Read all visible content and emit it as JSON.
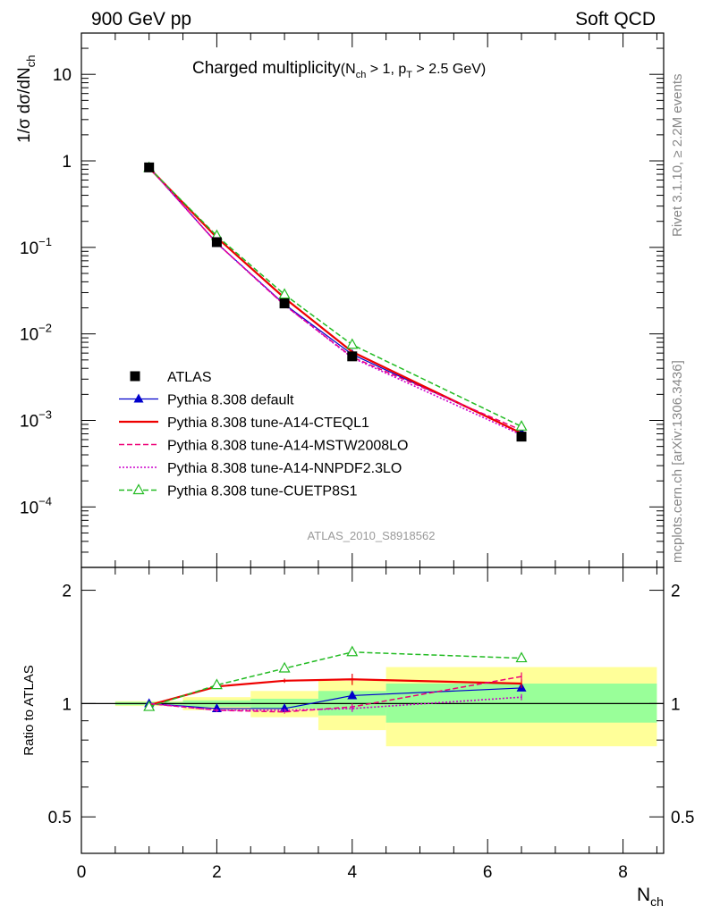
{
  "header": {
    "left": "900 GeV pp",
    "right": "Soft QCD"
  },
  "side_labels": {
    "rivet": "Rivet 3.1.10, ≥ 2.2M events",
    "mcplots": "mcplots.cern.ch [arXiv:1306.3436]"
  },
  "chart_data": [
    {
      "type": "line",
      "title_main": "Charged multiplicity",
      "title_cond": "(N",
      "title_cond_sub": "ch",
      "title_cond_mid": " > 1, p",
      "title_cond_sub2": "T",
      "title_cond_end": " > 2.5 GeV)",
      "ylabel_main": "1/σ dσ/dN",
      "ylabel_sub": "ch",
      "yscale": "log",
      "ylim": [
        2e-05,
        30
      ],
      "xlim": [
        0,
        8.6
      ],
      "watermark": "ATLAS_2010_S8918562",
      "ytick_labels": [
        {
          "value": 10,
          "mant": "10",
          "exp": ""
        },
        {
          "value": 1,
          "mant": "1",
          "exp": ""
        },
        {
          "value": 0.1,
          "mant": "10",
          "exp": "−1"
        },
        {
          "value": 0.01,
          "mant": "10",
          "exp": "−2"
        },
        {
          "value": 0.001,
          "mant": "10",
          "exp": "−3"
        },
        {
          "value": 0.0001,
          "mant": "10",
          "exp": "−4"
        }
      ],
      "legend_position": "left-middle",
      "series": [
        {
          "name": "ATLAS",
          "color": "#000000",
          "marker": "square",
          "line": "none",
          "x": [
            1,
            2,
            3,
            4,
            6.5
          ],
          "y": [
            0.84,
            0.115,
            0.0225,
            0.0055,
            0.00065
          ]
        },
        {
          "name": "Pythia 8.308 default",
          "color": "#0000cc",
          "marker": "triangle-filled",
          "line": "solid",
          "x": [
            1,
            2,
            3,
            4,
            6.5
          ],
          "y": [
            0.84,
            0.112,
            0.022,
            0.0058,
            0.00072
          ]
        },
        {
          "name": "Pythia 8.308 tune-A14-CTEQL1",
          "color": "#ee0000",
          "marker": "none",
          "line": "solid-thick",
          "x": [
            1,
            2,
            3,
            4,
            6.5
          ],
          "y": [
            0.83,
            0.13,
            0.026,
            0.0062,
            0.00071
          ]
        },
        {
          "name": "Pythia 8.308 tune-A14-MSTW2008LO",
          "color": "#ee0077",
          "marker": "none",
          "line": "dashed",
          "x": [
            1,
            2,
            3,
            4,
            6.5
          ],
          "y": [
            0.84,
            0.112,
            0.0215,
            0.0054,
            0.00077
          ]
        },
        {
          "name": "Pythia 8.308 tune-A14-NNPDF2.3LO",
          "color": "#cc00cc",
          "marker": "none",
          "line": "dotted",
          "x": [
            1,
            2,
            3,
            4,
            6.5
          ],
          "y": [
            0.84,
            0.112,
            0.0216,
            0.0053,
            0.00068
          ]
        },
        {
          "name": "Pythia 8.308 tune-CUETP8S1",
          "color": "#22bb22",
          "marker": "triangle-open",
          "line": "dashed",
          "x": [
            1,
            2,
            3,
            4,
            6.5
          ],
          "y": [
            0.83,
            0.136,
            0.0285,
            0.0075,
            0.00085
          ]
        }
      ]
    },
    {
      "type": "line",
      "ylabel": "Ratio to ATLAS",
      "xlabel_main": "N",
      "xlabel_sub": "ch",
      "ylim": [
        0.4,
        2.3
      ],
      "xlim": [
        0,
        8.6
      ],
      "ytick_labels": [
        {
          "value": 2,
          "label": "2"
        },
        {
          "value": 1,
          "label": "1"
        },
        {
          "value": 0.5,
          "label": "0.5"
        }
      ],
      "xtick_labels": [
        {
          "value": 0,
          "label": "0"
        },
        {
          "value": 2,
          "label": "2"
        },
        {
          "value": 4,
          "label": "4"
        },
        {
          "value": 6,
          "label": "6"
        },
        {
          "value": 8,
          "label": "8"
        }
      ],
      "uncertainty_bands": [
        {
          "xlo": 0.5,
          "xhi": 1.5,
          "stat_lo": 0.99,
          "stat_hi": 1.01,
          "tot_lo": 0.985,
          "tot_hi": 1.015
        },
        {
          "xlo": 1.5,
          "xhi": 2.5,
          "stat_lo": 0.98,
          "stat_hi": 1.02,
          "tot_lo": 0.96,
          "tot_hi": 1.04
        },
        {
          "xlo": 2.5,
          "xhi": 3.5,
          "stat_lo": 0.97,
          "stat_hi": 1.03,
          "tot_lo": 0.92,
          "tot_hi": 1.08
        },
        {
          "xlo": 3.5,
          "xhi": 4.5,
          "stat_lo": 0.93,
          "stat_hi": 1.08,
          "tot_lo": 0.85,
          "tot_hi": 1.15
        },
        {
          "xlo": 4.5,
          "xhi": 8.5,
          "stat_lo": 0.89,
          "stat_hi": 1.13,
          "tot_lo": 0.77,
          "tot_hi": 1.25
        }
      ],
      "series": [
        {
          "name": "Pythia 8.308 default",
          "x": [
            1,
            2,
            3,
            4,
            6.5
          ],
          "y": [
            1.0,
            0.97,
            0.97,
            1.05,
            1.1
          ],
          "err": [
            0,
            0.01,
            0.01,
            0.02,
            0.02
          ]
        },
        {
          "name": "Pythia 8.308 tune-A14-CTEQL1",
          "x": [
            1,
            2,
            3,
            4,
            6.5
          ],
          "y": [
            0.99,
            1.11,
            1.15,
            1.16,
            1.13
          ],
          "err": [
            0,
            0.01,
            0.015,
            0.04,
            0.03
          ]
        },
        {
          "name": "Pythia 8.308 tune-A14-MSTW2008LO",
          "x": [
            1,
            2,
            3,
            4,
            6.5
          ],
          "y": [
            1.0,
            0.96,
            0.95,
            0.98,
            1.18
          ],
          "err": [
            0,
            0.01,
            0.01,
            0.02,
            0.03
          ]
        },
        {
          "name": "Pythia 8.308 tune-A14-NNPDF2.3LO",
          "x": [
            1,
            2,
            3,
            4,
            6.5
          ],
          "y": [
            1.0,
            0.96,
            0.96,
            0.97,
            1.04
          ],
          "err": [
            0,
            0.01,
            0.01,
            0.02,
            0.02
          ]
        },
        {
          "name": "Pythia 8.308 tune-CUETP8S1",
          "x": [
            1,
            2,
            3,
            4,
            6.5
          ],
          "y": [
            0.98,
            1.12,
            1.24,
            1.37,
            1.32
          ],
          "err": [
            0,
            0.01,
            0.015,
            0.02,
            0.03
          ]
        }
      ]
    }
  ]
}
